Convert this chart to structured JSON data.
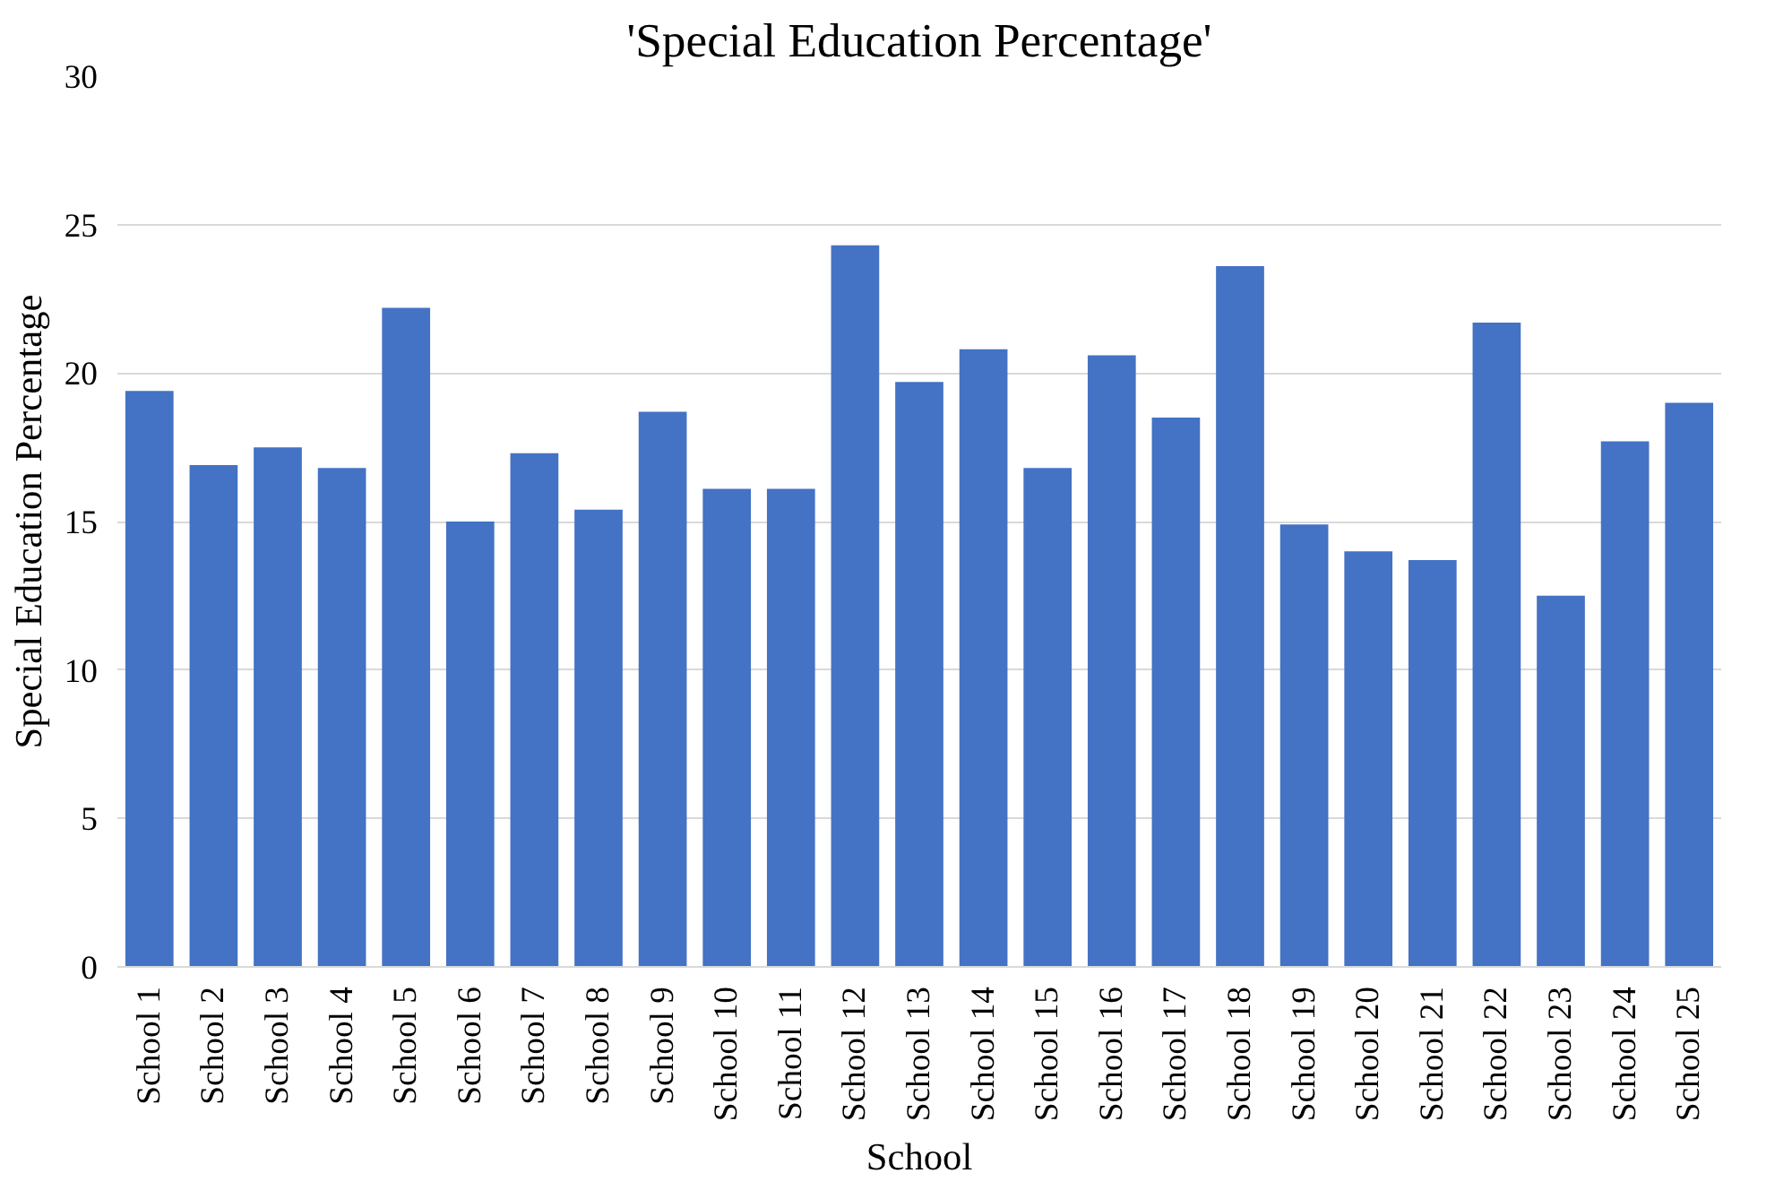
{
  "chart_data": {
    "type": "bar",
    "title": "'Special Education Percentage'",
    "xlabel": "School",
    "ylabel": "Special Education Percentage",
    "categories": [
      "School 1",
      "School 2",
      "School 3",
      "School 4",
      "School 5",
      "School 6",
      "School 7",
      "School 8",
      "School 9",
      "School 10",
      "School 11",
      "School 12",
      "School 13",
      "School 14",
      "School 15",
      "School 16",
      "School 17",
      "School 18",
      "School 19",
      "School 20",
      "School 21",
      "School 22",
      "School 23",
      "School 24",
      "School 25"
    ],
    "values": [
      19.4,
      16.9,
      17.5,
      16.8,
      22.2,
      15.0,
      17.3,
      15.4,
      18.7,
      16.1,
      16.1,
      24.3,
      19.7,
      20.8,
      16.8,
      20.6,
      18.5,
      23.6,
      14.9,
      14.0,
      13.7,
      21.7,
      12.5,
      17.7,
      19.0
    ],
    "color": "#4472c4",
    "ylim": [
      0,
      30
    ],
    "yticks": [
      0,
      5,
      10,
      15,
      20,
      25,
      30
    ],
    "grid": "y"
  }
}
